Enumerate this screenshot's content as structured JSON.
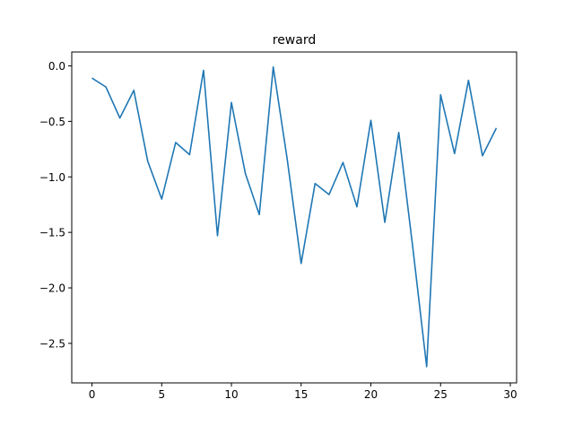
{
  "chart_data": {
    "type": "line",
    "title": "reward",
    "xlabel": "",
    "ylabel": "",
    "xlim": [
      -1.45,
      30.45
    ],
    "ylim": [
      -2.856,
      0.125
    ],
    "xticks": [
      0,
      5,
      10,
      15,
      20,
      25,
      30
    ],
    "xtick_labels": [
      "0",
      "5",
      "10",
      "15",
      "20",
      "25",
      "30"
    ],
    "yticks": [
      0.0,
      -0.5,
      -1.0,
      -1.5,
      -2.0,
      -2.5
    ],
    "ytick_labels": [
      "0.0",
      "−0.5",
      "−1.0",
      "−1.5",
      "−2.0",
      "−2.5"
    ],
    "grid": false,
    "legend": "none",
    "series": [
      {
        "color": "#1f77b4",
        "x": [
          0,
          1,
          2,
          3,
          4,
          5,
          6,
          7,
          8,
          9,
          10,
          11,
          12,
          13,
          14,
          15,
          16,
          17,
          18,
          19,
          20,
          21,
          22,
          23,
          24,
          25,
          26,
          27,
          28,
          29
        ],
        "values": [
          -0.11,
          -0.19,
          -0.47,
          -0.22,
          -0.86,
          -1.2,
          -0.69,
          -0.8,
          -0.04,
          -1.53,
          -0.33,
          -0.97,
          -1.34,
          -0.01,
          -0.84,
          -1.78,
          -1.06,
          -1.16,
          -0.87,
          -1.27,
          -0.49,
          -1.41,
          -0.6,
          -1.63,
          -2.71,
          -0.26,
          -0.79,
          -0.13,
          -0.81,
          -0.56
        ]
      }
    ]
  }
}
